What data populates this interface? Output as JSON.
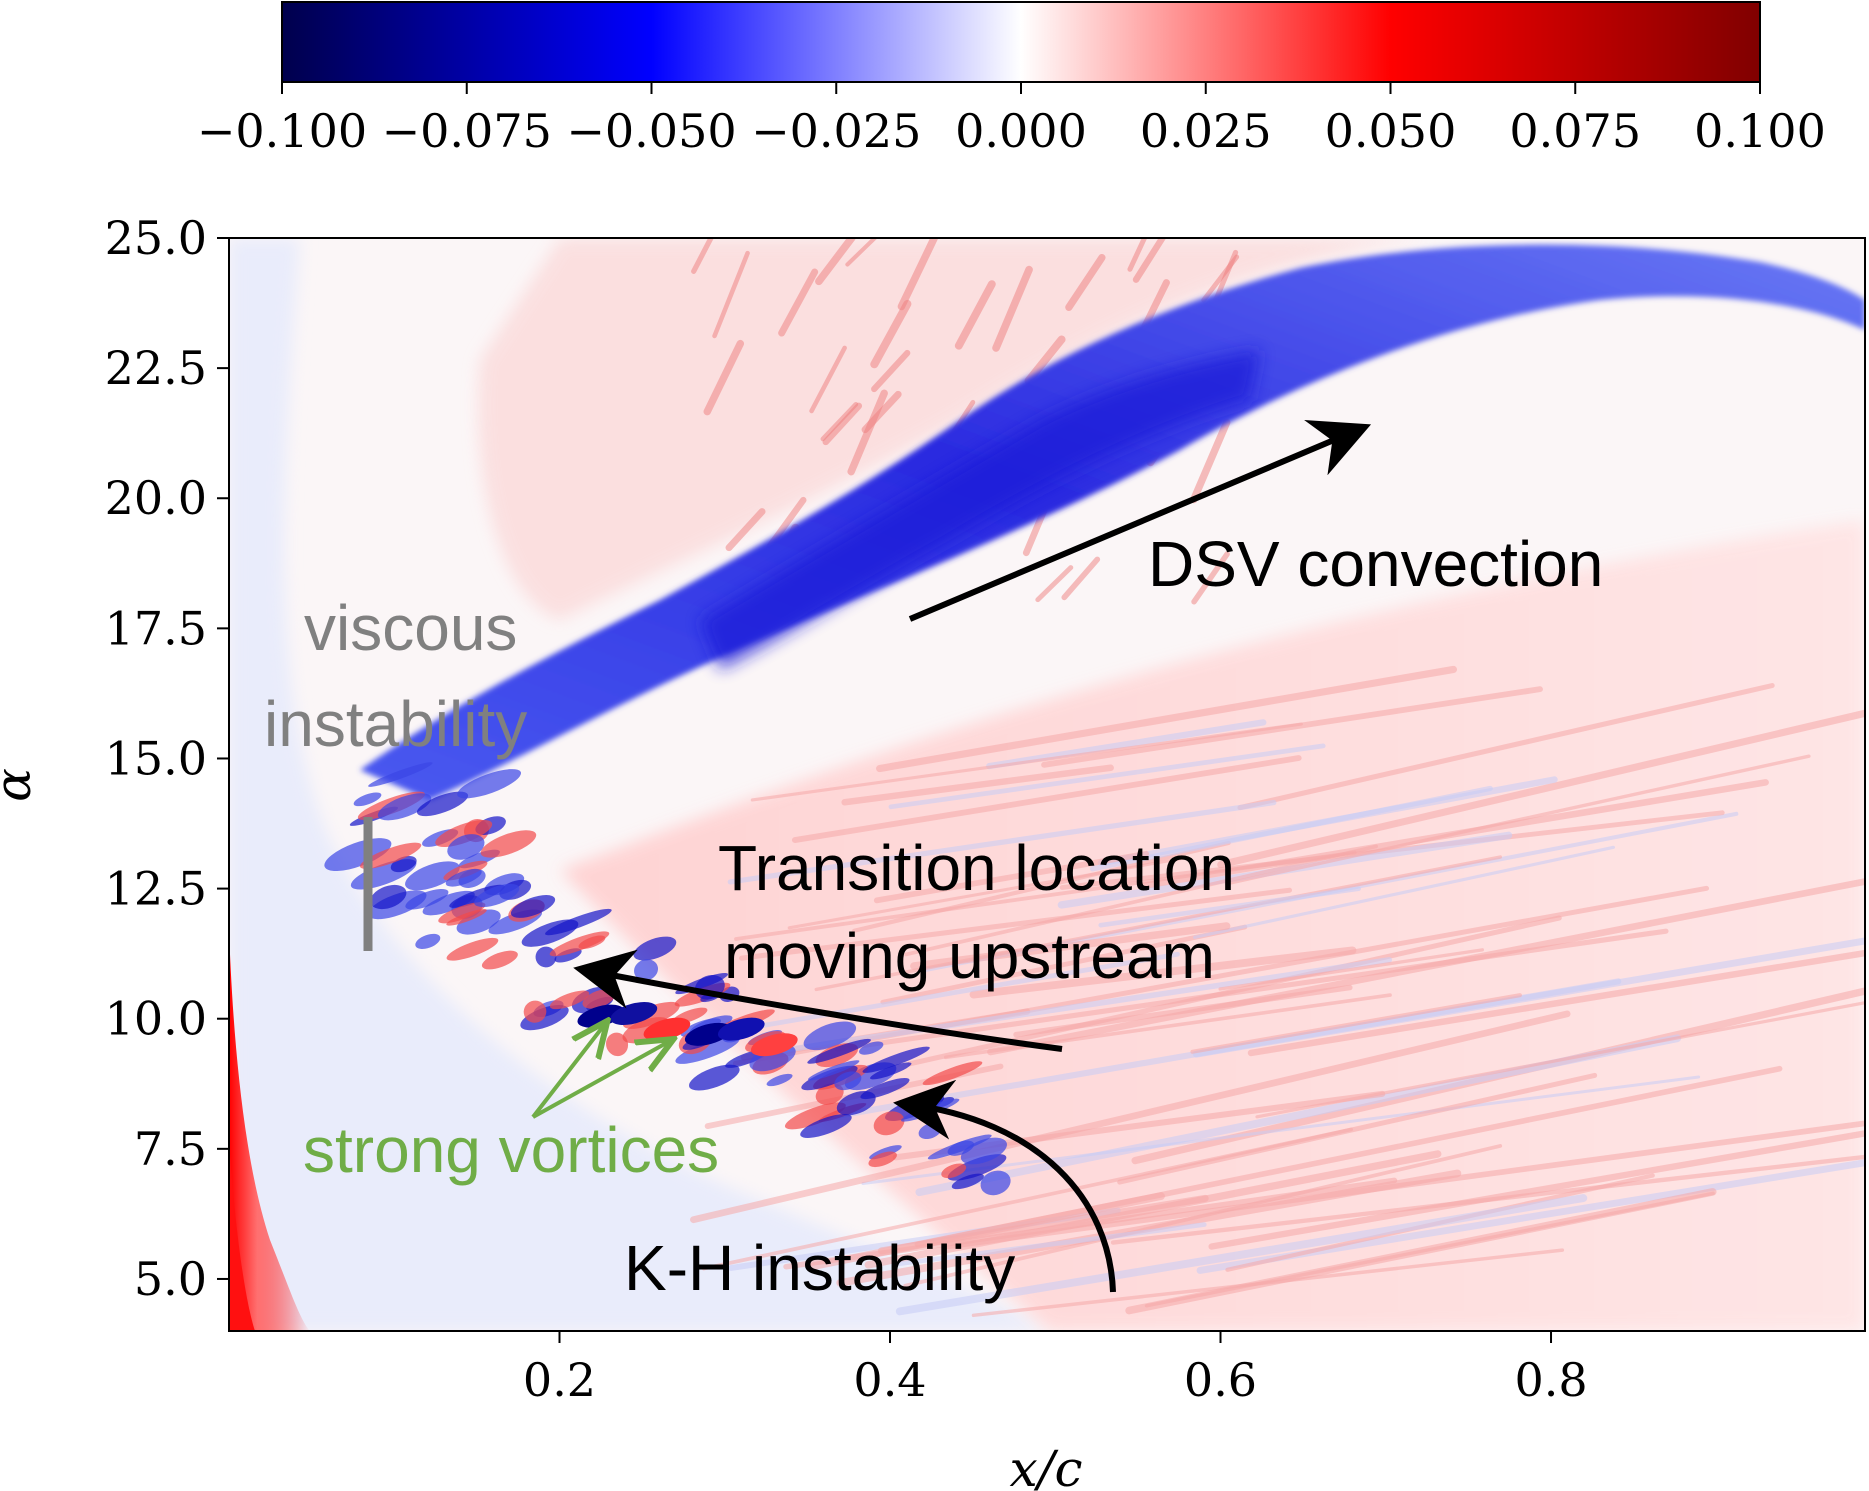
{
  "chart_data": {
    "type": "heatmap",
    "title": "",
    "xlabel": "x/c",
    "ylabel": "α",
    "xlim": [
      0.0,
      0.99
    ],
    "ylim": [
      4.0,
      25.0
    ],
    "x_ticks": [
      "0.2",
      "0.4",
      "0.6",
      "0.8"
    ],
    "x_tick_values": [
      0.2,
      0.4,
      0.6,
      0.8
    ],
    "y_ticks": [
      "5.0",
      "7.5",
      "10.0",
      "12.5",
      "15.0",
      "17.5",
      "20.0",
      "22.5",
      "25.0"
    ],
    "y_tick_values": [
      5.0,
      7.5,
      10.0,
      12.5,
      15.0,
      17.5,
      20.0,
      22.5,
      25.0
    ],
    "colorbar": {
      "vmin": -0.1,
      "vmax": 0.1,
      "colormap": "seismic",
      "tick_values": [
        -0.1,
        -0.075,
        -0.05,
        -0.025,
        0.0,
        0.025,
        0.05,
        0.075,
        0.1
      ],
      "tick_labels": [
        "−0.100",
        "−0.075",
        "−0.050",
        "−0.025",
        "0.000",
        "0.025",
        "0.050",
        "0.075",
        "0.100"
      ],
      "colors": {
        "low": "#00004c",
        "mid_low": "#0000ff",
        "center": "#ffffff",
        "mid_high": "#ff0000",
        "high": "#800000"
      }
    },
    "features": {
      "dsv_band": {
        "x_start": 0.1,
        "alpha_start": 13.5,
        "x_end": 0.99,
        "alpha_end": 24.5,
        "value": -0.06
      },
      "leading_edge_value": 0.1,
      "transition_front": [
        [
          0.53,
          4.0
        ],
        [
          0.45,
          7.0
        ],
        [
          0.35,
          9.0
        ],
        [
          0.22,
          10.5
        ],
        [
          0.12,
          12.5
        ],
        [
          0.1,
          14.0
        ]
      ]
    },
    "annotations": [
      {
        "text": "DSV convection",
        "color": "#000000",
        "arrow_from": [
          0.42,
          17.6
        ],
        "arrow_to": [
          0.7,
          21.3
        ]
      },
      {
        "text_lines": [
          "viscous",
          "instability"
        ],
        "color": "#808080",
        "bar_alpha_range": [
          11.3,
          13.8
        ],
        "bar_x": 0.085
      },
      {
        "text_lines": [
          "Transition location",
          "moving upstream"
        ],
        "color": "#000000",
        "arrow_from": [
          0.5,
          9.4
        ],
        "arrow_to": [
          0.2,
          11.0
        ]
      },
      {
        "text": "strong vortices",
        "color": "#70ad47",
        "arrow_targets": [
          [
            0.23,
            10.0
          ],
          [
            0.27,
            9.6
          ]
        ]
      },
      {
        "text": "K-H instability",
        "color": "#000000",
        "arrow_from": [
          0.535,
          4.7
        ],
        "arrow_to": [
          0.405,
          8.4
        ]
      }
    ]
  }
}
